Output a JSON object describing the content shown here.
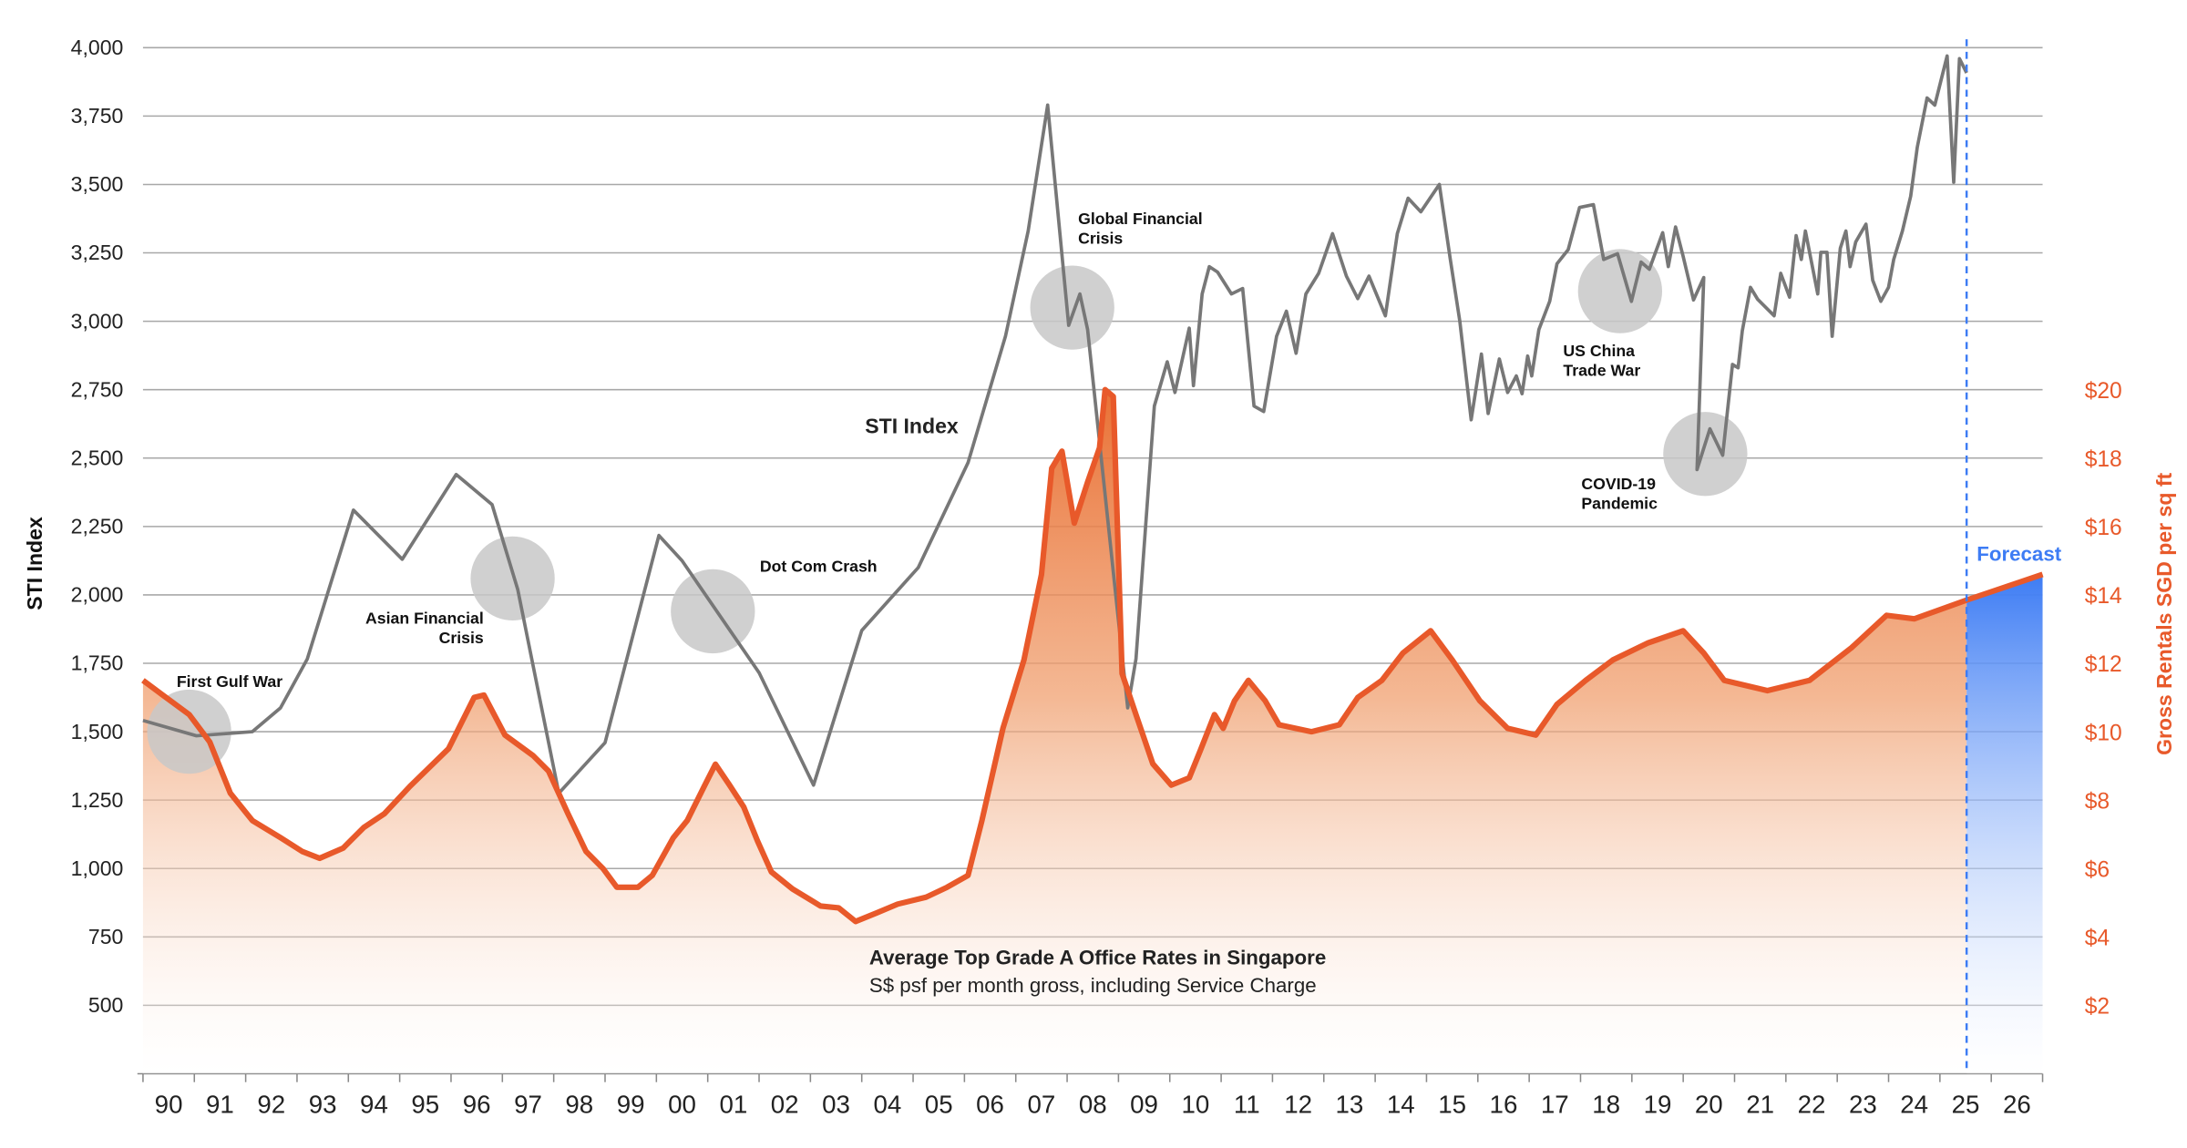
{
  "chart_data": {
    "type": "line",
    "ylabel": "STI Index",
    "y2label": "Gross Rentals SGD per sq ft",
    "ylim": [
      250,
      4000
    ],
    "y2lim": [
      0,
      30
    ],
    "yticks": [
      "4,000",
      "3,750",
      "3,500",
      "3,250",
      "3,000",
      "2,750",
      "2,500",
      "2,250",
      "2,000",
      "1,750",
      "1,500",
      "1,250",
      "1,000",
      "750",
      "500"
    ],
    "y2ticks": [
      "$20",
      "$18",
      "$16",
      "$14",
      "$12",
      "$10",
      "$8",
      "$6",
      "$4",
      "$2"
    ],
    "xticks": [
      "90",
      "91",
      "92",
      "93",
      "94",
      "95",
      "96",
      "97",
      "98",
      "99",
      "00",
      "01",
      "02",
      "03",
      "04",
      "05",
      "06",
      "07",
      "08",
      "09",
      "10",
      "11",
      "12",
      "13",
      "14",
      "15",
      "16",
      "17",
      "18",
      "19",
      "20",
      "21",
      "22",
      "23",
      "24",
      "25",
      "26"
    ],
    "xlim": [
      1990,
      2027
    ],
    "grid": true,
    "colors": {
      "sti": "#777777",
      "rent": "#e8592a",
      "forecast": "#3d7cf4",
      "annotation_circle": "#c8c8c8"
    },
    "series": [
      {
        "name": "STI Index",
        "axis": "left",
        "points": [
          [
            1990.0,
            1541
          ],
          [
            1991.04,
            1485
          ],
          [
            1992.13,
            1500
          ],
          [
            1992.68,
            1587
          ],
          [
            1993.2,
            1766
          ],
          [
            1994.1,
            2310
          ],
          [
            1995.05,
            2130
          ],
          [
            1996.1,
            2440
          ],
          [
            1996.8,
            2330
          ],
          [
            1997.3,
            2020
          ],
          [
            1998.1,
            1275
          ],
          [
            1999.0,
            1460
          ],
          [
            2000.05,
            2217
          ],
          [
            2000.5,
            2125
          ],
          [
            2002.0,
            1715
          ],
          [
            2003.06,
            1305
          ],
          [
            2004.0,
            1870
          ],
          [
            2005.1,
            2100
          ],
          [
            2006.07,
            2483
          ],
          [
            2006.8,
            2945
          ],
          [
            2007.24,
            3330
          ],
          [
            2007.62,
            3790
          ],
          [
            2008.03,
            2985
          ],
          [
            2008.25,
            3100
          ],
          [
            2008.4,
            2970
          ],
          [
            2009.18,
            1587
          ],
          [
            2009.34,
            1766
          ],
          [
            2009.7,
            2690
          ],
          [
            2009.95,
            2852
          ],
          [
            2010.1,
            2740
          ],
          [
            2010.38,
            2975
          ],
          [
            2010.46,
            2765
          ],
          [
            2010.63,
            3100
          ],
          [
            2010.77,
            3200
          ],
          [
            2010.93,
            3180
          ],
          [
            2011.2,
            3100
          ],
          [
            2011.42,
            3120
          ],
          [
            2011.64,
            2690
          ],
          [
            2011.83,
            2670
          ],
          [
            2012.08,
            2945
          ],
          [
            2012.27,
            3037
          ],
          [
            2012.46,
            2883
          ],
          [
            2012.65,
            3100
          ],
          [
            2012.9,
            3175
          ],
          [
            2013.17,
            3320
          ],
          [
            2013.44,
            3165
          ],
          [
            2013.66,
            3083
          ],
          [
            2013.88,
            3165
          ],
          [
            2014.2,
            3020
          ],
          [
            2014.43,
            3320
          ],
          [
            2014.64,
            3450
          ],
          [
            2014.89,
            3400
          ],
          [
            2015.25,
            3500
          ],
          [
            2015.46,
            3230
          ],
          [
            2015.65,
            3000
          ],
          [
            2015.87,
            2640
          ],
          [
            2016.07,
            2880
          ],
          [
            2016.2,
            2663
          ],
          [
            2016.42,
            2862
          ],
          [
            2016.58,
            2740
          ],
          [
            2016.75,
            2800
          ],
          [
            2016.86,
            2735
          ],
          [
            2016.97,
            2873
          ],
          [
            2017.05,
            2800
          ],
          [
            2017.19,
            2970
          ],
          [
            2017.4,
            3073
          ],
          [
            2017.54,
            3210
          ],
          [
            2017.76,
            3262
          ],
          [
            2017.98,
            3416
          ],
          [
            2018.25,
            3426
          ],
          [
            2018.45,
            3226
          ],
          [
            2018.72,
            3247
          ],
          [
            2018.99,
            3073
          ],
          [
            2019.18,
            3216
          ],
          [
            2019.34,
            3190
          ],
          [
            2019.6,
            3324
          ],
          [
            2019.71,
            3200
          ],
          [
            2019.85,
            3345
          ],
          [
            2020.0,
            3237
          ],
          [
            2020.2,
            3078
          ],
          [
            2020.4,
            3160
          ],
          [
            2020.27,
            2458
          ],
          [
            2020.52,
            2607
          ],
          [
            2020.77,
            2510
          ],
          [
            2020.96,
            2842
          ],
          [
            2021.07,
            2830
          ],
          [
            2021.15,
            2965
          ],
          [
            2021.31,
            3124
          ],
          [
            2021.45,
            3080
          ],
          [
            2021.77,
            3020
          ],
          [
            2021.9,
            3175
          ],
          [
            2022.07,
            3088
          ],
          [
            2022.2,
            3313
          ],
          [
            2022.3,
            3226
          ],
          [
            2022.38,
            3330
          ],
          [
            2022.62,
            3100
          ],
          [
            2022.68,
            3252
          ],
          [
            2022.8,
            3252
          ],
          [
            2022.9,
            2945
          ],
          [
            2023.06,
            3267
          ],
          [
            2023.17,
            3330
          ],
          [
            2023.25,
            3200
          ],
          [
            2023.36,
            3290
          ],
          [
            2023.56,
            3355
          ],
          [
            2023.69,
            3150
          ],
          [
            2023.85,
            3073
          ],
          [
            2024.0,
            3124
          ],
          [
            2024.1,
            3226
          ],
          [
            2024.27,
            3330
          ],
          [
            2024.43,
            3457
          ],
          [
            2024.56,
            3636
          ],
          [
            2024.75,
            3816
          ],
          [
            2024.9,
            3790
          ],
          [
            2025.14,
            3970
          ],
          [
            2025.27,
            3508
          ],
          [
            2025.38,
            3960
          ],
          [
            2025.52,
            3908
          ]
        ]
      },
      {
        "name": "Average Top Grade A Office Rates in Singapore",
        "axis": "right",
        "points": [
          [
            1990.0,
            11.5
          ],
          [
            1990.36,
            11.1
          ],
          [
            1990.9,
            10.5
          ],
          [
            1991.3,
            9.7
          ],
          [
            1991.7,
            8.2
          ],
          [
            1992.13,
            7.4
          ],
          [
            1992.68,
            6.9
          ],
          [
            1993.1,
            6.5
          ],
          [
            1993.44,
            6.3
          ],
          [
            1993.9,
            6.6
          ],
          [
            1994.3,
            7.2
          ],
          [
            1994.7,
            7.6
          ],
          [
            1995.2,
            8.4
          ],
          [
            1995.95,
            9.5
          ],
          [
            1996.45,
            11.0
          ],
          [
            1996.64,
            11.07
          ],
          [
            1997.05,
            9.9
          ],
          [
            1997.6,
            9.3
          ],
          [
            1997.9,
            8.85
          ],
          [
            1998.28,
            7.6
          ],
          [
            1998.63,
            6.5
          ],
          [
            1998.96,
            6.0
          ],
          [
            1999.23,
            5.45
          ],
          [
            1999.64,
            5.45
          ],
          [
            1999.92,
            5.8
          ],
          [
            2000.33,
            6.9
          ],
          [
            2000.6,
            7.4
          ],
          [
            2000.93,
            8.4
          ],
          [
            2001.15,
            9.05
          ],
          [
            2001.42,
            8.45
          ],
          [
            2001.7,
            7.8
          ],
          [
            2001.97,
            6.8
          ],
          [
            2002.24,
            5.9
          ],
          [
            2002.65,
            5.4
          ],
          [
            2003.2,
            4.9
          ],
          [
            2003.55,
            4.85
          ],
          [
            2003.88,
            4.45
          ],
          [
            2004.29,
            4.7
          ],
          [
            2004.7,
            4.96
          ],
          [
            2005.25,
            5.16
          ],
          [
            2005.66,
            5.45
          ],
          [
            2006.07,
            5.8
          ],
          [
            2006.34,
            7.4
          ],
          [
            2006.75,
            10.1
          ],
          [
            2007.16,
            12.1
          ],
          [
            2007.5,
            14.6
          ],
          [
            2007.7,
            17.7
          ],
          [
            2007.9,
            18.2
          ],
          [
            2008.14,
            16.1
          ],
          [
            2008.4,
            17.3
          ],
          [
            2008.63,
            18.3
          ],
          [
            2008.74,
            20.0
          ],
          [
            2008.9,
            19.8
          ],
          [
            2009.07,
            11.7
          ],
          [
            2009.34,
            10.5
          ],
          [
            2009.67,
            9.06
          ],
          [
            2010.03,
            8.44
          ],
          [
            2010.38,
            8.65
          ],
          [
            2010.6,
            9.47
          ],
          [
            2010.87,
            10.5
          ],
          [
            2011.04,
            10.1
          ],
          [
            2011.26,
            10.9
          ],
          [
            2011.53,
            11.5
          ],
          [
            2011.86,
            10.9
          ],
          [
            2012.13,
            10.2
          ],
          [
            2012.76,
            10.0
          ],
          [
            2013.3,
            10.2
          ],
          [
            2013.66,
            11.0
          ],
          [
            2014.13,
            11.5
          ],
          [
            2014.54,
            12.3
          ],
          [
            2015.08,
            12.95
          ],
          [
            2015.5,
            12.1
          ],
          [
            2016.04,
            10.9
          ],
          [
            2016.58,
            10.1
          ],
          [
            2017.13,
            9.9
          ],
          [
            2017.54,
            10.8
          ],
          [
            2018.1,
            11.5
          ],
          [
            2018.63,
            12.1
          ],
          [
            2019.32,
            12.6
          ],
          [
            2020.0,
            12.95
          ],
          [
            2020.4,
            12.3
          ],
          [
            2020.8,
            11.5
          ],
          [
            2021.64,
            11.2
          ],
          [
            2022.46,
            11.5
          ],
          [
            2023.28,
            12.46
          ],
          [
            2023.96,
            13.4
          ],
          [
            2024.5,
            13.3
          ],
          [
            2025.52,
            13.85
          ]
        ]
      },
      {
        "name": "Forecast",
        "axis": "right",
        "points": [
          [
            2025.52,
            13.85
          ],
          [
            2027.0,
            14.6
          ]
        ]
      }
    ],
    "forecast_start": 2025.52,
    "labels": {
      "sti": "STI Index",
      "rent_title": "Average Top Grade A Office Rates in Singapore",
      "rent_subtitle": "S$ psf per month gross, including Service Charge",
      "forecast": "Forecast"
    },
    "annotations": [
      {
        "id": "gulf",
        "lines": [
          "First Gulf War"
        ],
        "x": 1990.9,
        "y": 1500
      },
      {
        "id": "asian",
        "lines": [
          "Asian Financial",
          "Crisis"
        ],
        "x": 1997.2,
        "y": 2060
      },
      {
        "id": "dotcom",
        "lines": [
          "Dot Com Crash"
        ],
        "x": 2001.1,
        "y": 1940
      },
      {
        "id": "gfc",
        "lines": [
          "Global Financial",
          "Crisis"
        ],
        "x": 2008.1,
        "y": 3050
      },
      {
        "id": "uschina",
        "lines": [
          "US China",
          "Trade War"
        ],
        "x": 2018.77,
        "y": 3110
      },
      {
        "id": "covid",
        "lines": [
          "COVID-19",
          "Pandemic"
        ],
        "x": 2020.43,
        "y": 2515
      }
    ]
  }
}
